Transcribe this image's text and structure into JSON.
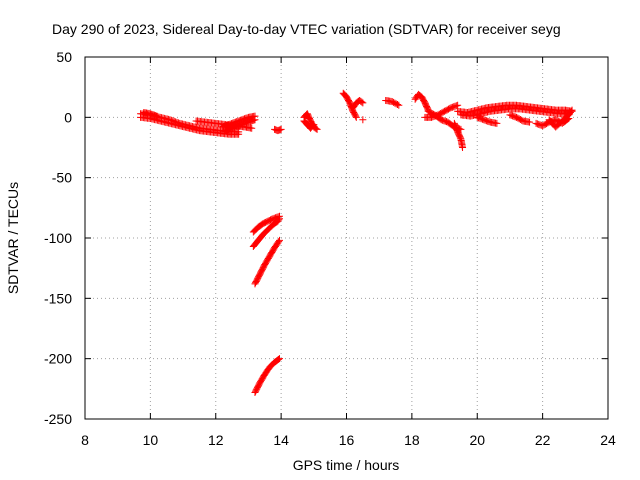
{
  "chart_data": {
    "type": "scatter",
    "title": "Day 290 of 2023, Sidereal Day-to-day VTEC variation (SDTVAR) for receiver seyg",
    "xlabel": "GPS time / hours",
    "ylabel": "SDTVAR / TECUs",
    "xlim": [
      8,
      24
    ],
    "ylim": [
      -250,
      50
    ],
    "xticks": [
      8,
      10,
      12,
      14,
      16,
      18,
      20,
      22,
      24
    ],
    "yticks": [
      50,
      0,
      -50,
      -100,
      -150,
      -200,
      -250
    ],
    "grid": true,
    "series": [
      {
        "name": "SDTVAR",
        "color": "#ff0000",
        "marker": "plus",
        "segments": [
          [
            [
              9.7,
              3
            ],
            [
              10.0,
              2
            ],
            [
              10.3,
              0
            ],
            [
              10.6,
              -2
            ],
            [
              10.9,
              -5
            ],
            [
              11.2,
              -7
            ],
            [
              11.5,
              -9
            ],
            [
              11.8,
              -10
            ],
            [
              12.1,
              -11
            ],
            [
              12.4,
              -12
            ],
            [
              12.7,
              -12
            ]
          ],
          [
            [
              9.7,
              0
            ],
            [
              10.0,
              -1
            ],
            [
              10.3,
              -3
            ],
            [
              10.6,
              -5
            ],
            [
              10.9,
              -7
            ],
            [
              11.2,
              -9
            ],
            [
              11.5,
              -11
            ],
            [
              11.8,
              -12
            ],
            [
              12.1,
              -13
            ],
            [
              12.4,
              -14
            ],
            [
              12.7,
              -14
            ]
          ],
          [
            [
              9.8,
              4
            ],
            [
              10.0,
              3
            ],
            [
              10.2,
              1
            ]
          ],
          [
            [
              11.4,
              -3
            ],
            [
              11.7,
              -4
            ],
            [
              12.0,
              -5
            ],
            [
              12.3,
              -6
            ],
            [
              12.6,
              -7
            ],
            [
              12.9,
              -8
            ],
            [
              13.1,
              -9
            ]
          ],
          [
            [
              12.2,
              -8
            ],
            [
              12.4,
              -6
            ],
            [
              12.6,
              -4
            ],
            [
              12.8,
              -2
            ],
            [
              13.0,
              0
            ],
            [
              13.2,
              1
            ]
          ],
          [
            [
              12.3,
              -11
            ],
            [
              12.5,
              -9
            ],
            [
              12.7,
              -7
            ],
            [
              12.9,
              -5
            ],
            [
              13.1,
              -3
            ],
            [
              13.2,
              -2
            ]
          ],
          [
            [
              13.8,
              -10
            ],
            [
              13.9,
              -11
            ],
            [
              14.0,
              -10
            ]
          ],
          [
            [
              14.7,
              0
            ],
            [
              14.8,
              3
            ],
            [
              14.9,
              -3
            ],
            [
              15.0,
              -8
            ],
            [
              15.1,
              -10
            ]
          ],
          [
            [
              14.7,
              -3
            ],
            [
              14.8,
              -6
            ],
            [
              14.9,
              -9
            ],
            [
              15.0,
              -6
            ]
          ],
          [
            [
              15.9,
              20
            ],
            [
              16.0,
              17
            ],
            [
              16.1,
              12
            ],
            [
              16.2,
              5
            ],
            [
              16.3,
              0
            ]
          ],
          [
            [
              16.2,
              8
            ],
            [
              16.3,
              12
            ],
            [
              16.4,
              14
            ],
            [
              16.5,
              12
            ]
          ],
          [
            [
              16.5,
              -2
            ]
          ],
          [
            [
              17.2,
              14
            ],
            [
              17.4,
              13
            ],
            [
              17.6,
              10
            ]
          ],
          [
            [
              18.1,
              15
            ],
            [
              18.2,
              19
            ],
            [
              18.3,
              17
            ],
            [
              18.4,
              12
            ],
            [
              18.5,
              6
            ]
          ],
          [
            [
              18.4,
              0
            ],
            [
              18.6,
              0
            ],
            [
              18.8,
              2
            ],
            [
              19.0,
              5
            ],
            [
              19.2,
              8
            ],
            [
              19.4,
              10
            ]
          ],
          [
            [
              18.5,
              5
            ],
            [
              18.7,
              2
            ],
            [
              18.9,
              -2
            ],
            [
              19.1,
              -4
            ],
            [
              19.3,
              -8
            ],
            [
              19.5,
              -10
            ]
          ],
          [
            [
              19.3,
              -5
            ],
            [
              19.4,
              -12
            ],
            [
              19.5,
              -18
            ],
            [
              19.55,
              -25
            ]
          ],
          [
            [
              19.4,
              5
            ],
            [
              19.7,
              4
            ],
            [
              20.0,
              6
            ],
            [
              20.3,
              8
            ],
            [
              20.6,
              9
            ],
            [
              20.9,
              10
            ],
            [
              21.2,
              10
            ],
            [
              21.5,
              9
            ],
            [
              21.8,
              8
            ],
            [
              22.1,
              7
            ],
            [
              22.4,
              6
            ],
            [
              22.7,
              6
            ],
            [
              22.9,
              5
            ]
          ],
          [
            [
              19.5,
              2
            ],
            [
              19.8,
              1
            ],
            [
              20.1,
              3
            ],
            [
              20.4,
              5
            ],
            [
              20.7,
              6
            ],
            [
              21.0,
              7
            ],
            [
              21.3,
              7
            ],
            [
              21.6,
              6
            ],
            [
              21.9,
              5
            ],
            [
              22.2,
              4
            ],
            [
              22.5,
              3
            ],
            [
              22.8,
              3
            ]
          ],
          [
            [
              20.0,
              0
            ],
            [
              20.2,
              -2
            ],
            [
              20.4,
              -4
            ],
            [
              20.6,
              -5
            ]
          ],
          [
            [
              21.0,
              2
            ],
            [
              21.2,
              0
            ],
            [
              21.4,
              -3
            ],
            [
              21.6,
              -4
            ]
          ],
          [
            [
              21.8,
              -5
            ],
            [
              22.0,
              -7
            ],
            [
              22.2,
              -4
            ],
            [
              22.4,
              -2
            ],
            [
              22.6,
              -5
            ],
            [
              22.8,
              -1
            ]
          ],
          [
            [
              22.2,
              -2
            ],
            [
              22.4,
              -8
            ],
            [
              22.6,
              -3
            ],
            [
              22.8,
              2
            ],
            [
              22.9,
              6
            ]
          ],
          [
            [
              13.15,
              -95
            ],
            [
              13.3,
              -91
            ],
            [
              13.45,
              -88
            ],
            [
              13.6,
              -86
            ],
            [
              13.75,
              -84
            ],
            [
              13.95,
              -82
            ]
          ],
          [
            [
              13.15,
              -107
            ],
            [
              13.3,
              -102
            ],
            [
              13.45,
              -97
            ],
            [
              13.6,
              -93
            ],
            [
              13.75,
              -89
            ],
            [
              13.9,
              -86
            ],
            [
              13.95,
              -84
            ]
          ],
          [
            [
              13.2,
              -138
            ],
            [
              13.35,
              -130
            ],
            [
              13.5,
              -122
            ],
            [
              13.65,
              -115
            ],
            [
              13.8,
              -108
            ],
            [
              13.95,
              -102
            ]
          ],
          [
            [
              13.2,
              -228
            ],
            [
              13.35,
              -220
            ],
            [
              13.5,
              -213
            ],
            [
              13.65,
              -207
            ],
            [
              13.8,
              -203
            ],
            [
              13.95,
              -200
            ]
          ]
        ]
      }
    ]
  }
}
